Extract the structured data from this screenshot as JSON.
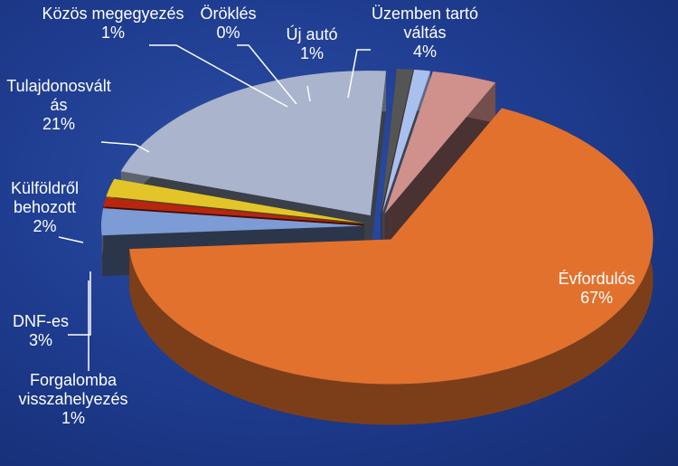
{
  "chart_data": {
    "type": "pie",
    "categories": [
      "Évfordulós",
      "DNF-es",
      "Forgalomba visszahelyezés",
      "Külföldről behozott",
      "Tulajdonosváltás",
      "Közös megegyezés",
      "Öröklés",
      "Új autó",
      "Üzemben tartó váltás"
    ],
    "values": [
      67,
      3,
      1,
      2,
      21,
      1,
      0,
      1,
      4
    ],
    "value_labels": [
      "67%",
      "3%",
      "1%",
      "2%",
      "21%",
      "1%",
      "0%",
      "1%",
      "4%"
    ],
    "colors": [
      "#e2712e",
      "#7d9bd4",
      "#b8260f",
      "#e3c52a",
      "#aab4cc",
      "#555555",
      "#f4a47a",
      "#a9c0ee",
      "#d0908c"
    ]
  }
}
